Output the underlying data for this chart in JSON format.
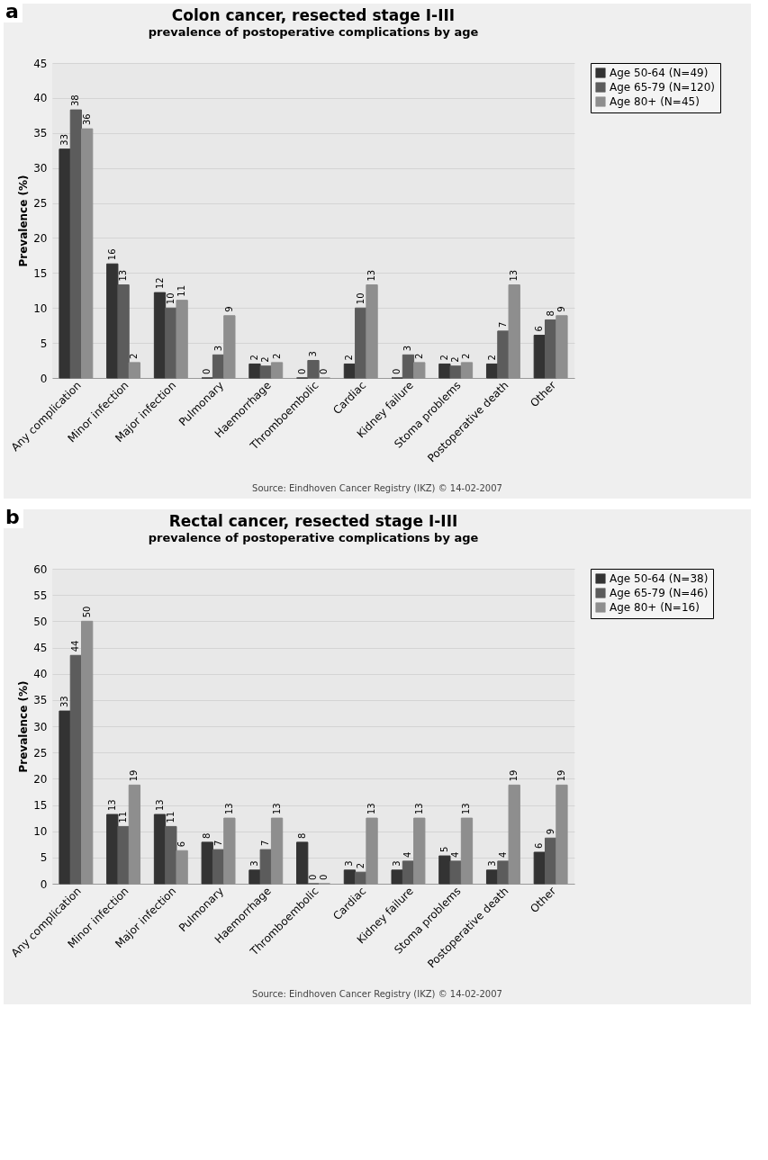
{
  "chart_data": [
    {
      "type": "bar",
      "title": "Colon cancer, resected stage I-III",
      "subtitle": "prevalence of postoperative complications by age",
      "ylabel": "Prevalence (%)",
      "categories": [
        "Any complication",
        "Minor infection",
        "Major infection",
        "Pulmonary",
        "Haemorrhage",
        "Thromboembolic",
        "Cardiac",
        "Kidney failure",
        "Stoma problems",
        "Postoperative death",
        "Other"
      ],
      "series": [
        {
          "name": "Age 50-64 (N=49)",
          "color": "#333333",
          "values": [
            32.7,
            16.3,
            12.2,
            0,
            2.0,
            0,
            2.0,
            0,
            2.0,
            2.0,
            6.1
          ],
          "value_labels": [
            "33",
            "16",
            "12",
            "0",
            "2",
            "0",
            "2",
            "0",
            "2",
            "2",
            "6"
          ]
        },
        {
          "name": "Age 65-79 (N=120)",
          "color": "#5c5c5c",
          "values": [
            38.3,
            13.3,
            10.0,
            3.3,
            1.7,
            2.5,
            10.0,
            3.3,
            1.7,
            6.7,
            8.3
          ],
          "value_labels": [
            "38",
            "13",
            "10",
            "3",
            "2",
            "3",
            "10",
            "3",
            "2",
            "7",
            "8"
          ]
        },
        {
          "name": "Age 80+ (N=45)",
          "color": "#8e8e8e",
          "values": [
            35.6,
            2.2,
            11.1,
            8.9,
            2.2,
            0,
            13.3,
            2.2,
            2.2,
            13.3,
            8.9
          ],
          "value_labels": [
            "36",
            "2",
            "11",
            "9",
            "2",
            "0",
            "13",
            "2",
            "2",
            "13",
            "9"
          ]
        }
      ],
      "ylim": [
        0,
        45
      ],
      "yticks": [
        0,
        5,
        10,
        15,
        20,
        25,
        30,
        35,
        40,
        45
      ],
      "grid": "y",
      "legend": "top right",
      "annotations": [
        "a",
        "Source: Eindhoven Cancer Registry (IKZ) © 14-02-2007"
      ]
    },
    {
      "type": "bar",
      "title": "Rectal cancer, resected stage I-III",
      "subtitle": "prevalence of postoperative complications by age",
      "ylabel": "Prevalence (%)",
      "categories": [
        "Any complication",
        "Minor infection",
        "Major infection",
        "Pulmonary",
        "Haemorrhage",
        "Thromboembolic",
        "Cardiac",
        "Kidney failure",
        "Stoma problems",
        "Postoperative death",
        "Other"
      ],
      "series": [
        {
          "name": "Age 50-64 (N=38)",
          "color": "#333333",
          "values": [
            32.9,
            13.2,
            13.2,
            7.9,
            2.6,
            7.9,
            2.6,
            2.6,
            5.3,
            2.6,
            6.0
          ],
          "value_labels": [
            "33",
            "13",
            "13",
            "8",
            "3",
            "8",
            "3",
            "3",
            "5",
            "3",
            "6"
          ]
        },
        {
          "name": "Age 65-79 (N=46)",
          "color": "#5c5c5c",
          "values": [
            43.5,
            10.9,
            10.9,
            6.5,
            6.5,
            0,
            2.2,
            4.3,
            4.3,
            4.3,
            8.7
          ],
          "value_labels": [
            "44",
            "11",
            "11",
            "7",
            "7",
            "0",
            "2",
            "4",
            "4",
            "4",
            "9"
          ]
        },
        {
          "name": "Age 80+ (N=16)",
          "color": "#8e8e8e",
          "values": [
            50.0,
            18.8,
            6.3,
            12.5,
            12.5,
            0,
            12.5,
            12.5,
            12.5,
            18.8,
            18.8
          ],
          "value_labels": [
            "50",
            "19",
            "6",
            "13",
            "13",
            "0",
            "13",
            "13",
            "13",
            "19",
            "19"
          ]
        }
      ],
      "ylim": [
        0,
        60
      ],
      "yticks": [
        0,
        5,
        10,
        15,
        20,
        25,
        30,
        35,
        40,
        45,
        50,
        55,
        60
      ],
      "grid": "y",
      "legend": "top right",
      "annotations": [
        "b",
        "Source: Eindhoven Cancer Registry (IKZ) © 14-02-2007"
      ]
    }
  ]
}
